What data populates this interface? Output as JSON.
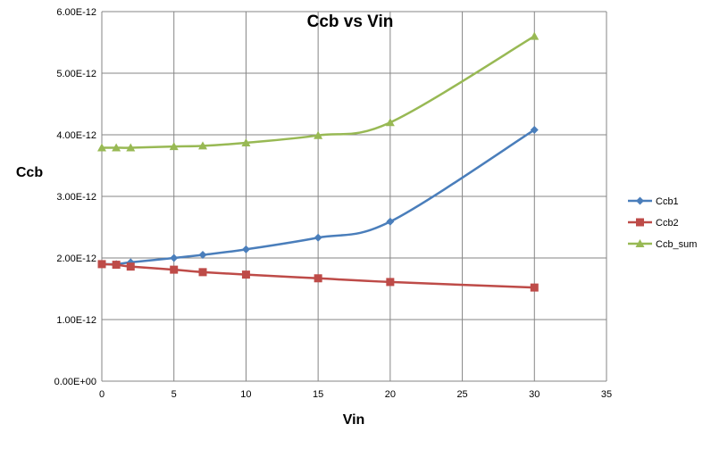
{
  "chart_data": {
    "type": "line",
    "title": "Ccb vs Vin",
    "xlabel": "Vin",
    "ylabel": "Ccb",
    "xlim": [
      0,
      35
    ],
    "x_ticks": [
      0,
      5,
      10,
      15,
      20,
      25,
      30,
      35
    ],
    "x_tick_labels": [
      "0",
      "5",
      "10",
      "15",
      "20",
      "25",
      "30",
      "35"
    ],
    "ylim": [
      0,
      6e-12
    ],
    "y_ticks": [
      0,
      1e-12,
      2e-12,
      3e-12,
      4e-12,
      5e-12,
      6e-12
    ],
    "y_tick_labels": [
      "0.00E+00",
      "1.00E-12",
      "2.00E-12",
      "3.00E-12",
      "4.00E-12",
      "5.00E-12",
      "6.00E-12"
    ],
    "grid": true,
    "legend_position": "right",
    "smooth": true,
    "x": [
      0,
      1,
      2,
      5,
      7,
      10,
      15,
      20,
      30
    ],
    "series": [
      {
        "name": "Ccb1",
        "marker": "diamond",
        "color": "#4a7ebb",
        "values": [
          1.9e-12,
          1.9e-12,
          1.93e-12,
          2e-12,
          2.05e-12,
          2.14e-12,
          2.33e-12,
          2.59e-12,
          4.08e-12
        ]
      },
      {
        "name": "Ccb2",
        "marker": "square",
        "color": "#be4b48",
        "values": [
          1.9e-12,
          1.89e-12,
          1.86e-12,
          1.81e-12,
          1.77e-12,
          1.73e-12,
          1.67e-12,
          1.61e-12,
          1.52e-12
        ]
      },
      {
        "name": "Ccb_sum",
        "marker": "triangle",
        "color": "#98b954",
        "values": [
          3.79e-12,
          3.79e-12,
          3.79e-12,
          3.81e-12,
          3.82e-12,
          3.87e-12,
          3.99e-12,
          4.2e-12,
          5.6e-12
        ]
      }
    ]
  }
}
